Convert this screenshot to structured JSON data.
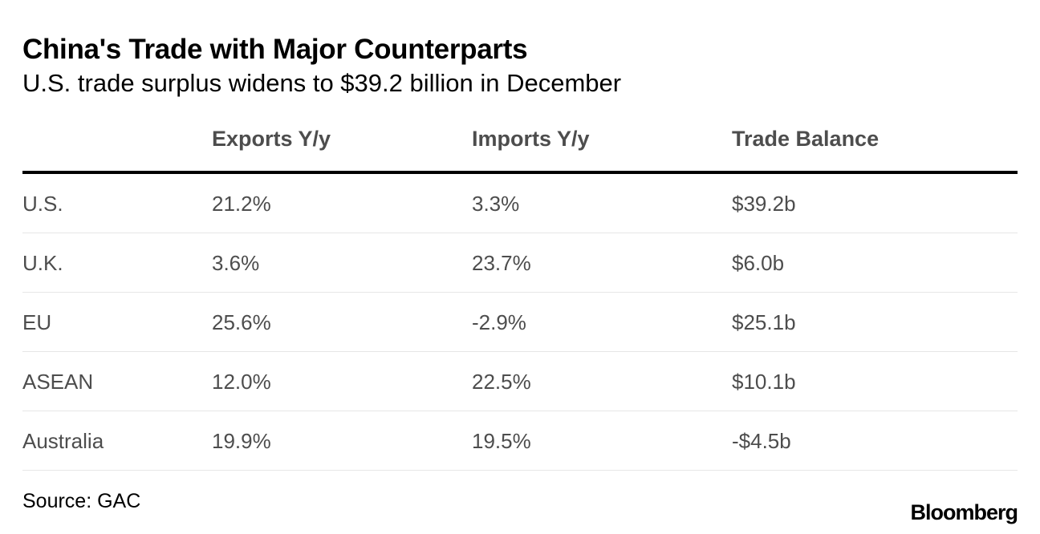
{
  "chart_data": {
    "type": "table",
    "title": "China's Trade with Major Counterparts",
    "subtitle": "U.S. trade surplus widens to $39.2 billion in December",
    "columns": [
      "",
      "Exports Y/y",
      "Imports Y/y",
      "Trade Balance"
    ],
    "rows": [
      {
        "region": "U.S.",
        "exports": "21.2%",
        "imports": "3.3%",
        "balance": "$39.2b"
      },
      {
        "region": "U.K.",
        "exports": "3.6%",
        "imports": "23.7%",
        "balance": "$6.0b"
      },
      {
        "region": "EU",
        "exports": "25.6%",
        "imports": "-2.9%",
        "balance": "$25.1b"
      },
      {
        "region": "ASEAN",
        "exports": "12.0%",
        "imports": "22.5%",
        "balance": "$10.1b"
      },
      {
        "region": "Australia",
        "exports": "19.9%",
        "imports": "19.5%",
        "balance": "-$4.5b"
      }
    ],
    "source": "Source: GAC",
    "brand": "Bloomberg"
  }
}
